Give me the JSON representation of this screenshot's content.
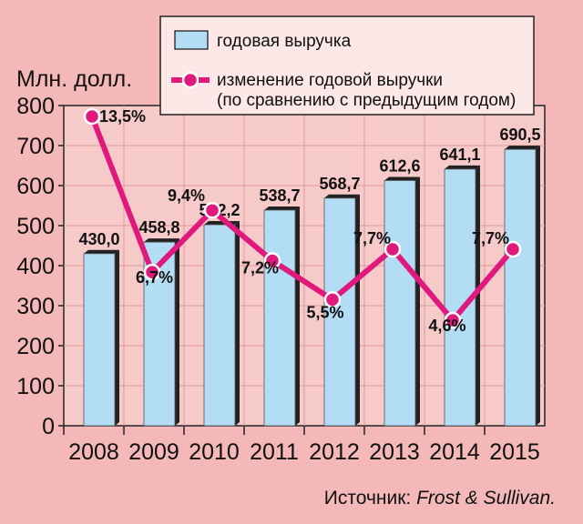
{
  "chart_data": {
    "type": "bar",
    "ylabel": "Млн. долл.",
    "categories": [
      "2008",
      "2009",
      "2010",
      "2011",
      "2012",
      "2013",
      "2014",
      "2015"
    ],
    "ylim": [
      0,
      800
    ],
    "yticks": [
      0,
      100,
      200,
      300,
      400,
      500,
      600,
      700,
      800
    ],
    "series": [
      {
        "name": "годовая выручка",
        "type": "bar",
        "values": [
          430.0,
          458.8,
          502.2,
          538.7,
          568.7,
          612.6,
          641.1,
          690.5
        ],
        "labels": [
          "430,0",
          "458,8",
          "502,2",
          "538,7",
          "568,7",
          "612,6",
          "641,1",
          "690,5"
        ],
        "color": "#b3dcf5"
      },
      {
        "name": "изменение годовой выручки (по сравнению с предыдущим годом)",
        "name_line1": "изменение годовой выручки",
        "name_line2": "(по сравнению с предыдущим годом)",
        "type": "line",
        "values": [
          13.5,
          6.7,
          9.4,
          7.2,
          5.5,
          7.7,
          4.6,
          7.7
        ],
        "labels": [
          "13,5%",
          "6,7%",
          "9,4%",
          "7,2%",
          "5,5%",
          "7,7%",
          "4,6%",
          "7,7%"
        ],
        "color": "#e0197c"
      }
    ],
    "legend_position": "top-right",
    "grid": true
  },
  "source": {
    "prefix": "Источник: ",
    "name": "Frost & Sullivan."
  },
  "colors": {
    "background": "#f4b8b8",
    "plot_bg": "#f7caca",
    "bar": "#b3dcf5",
    "line": "#e0197c",
    "legend_bg": "#fde8e8"
  }
}
